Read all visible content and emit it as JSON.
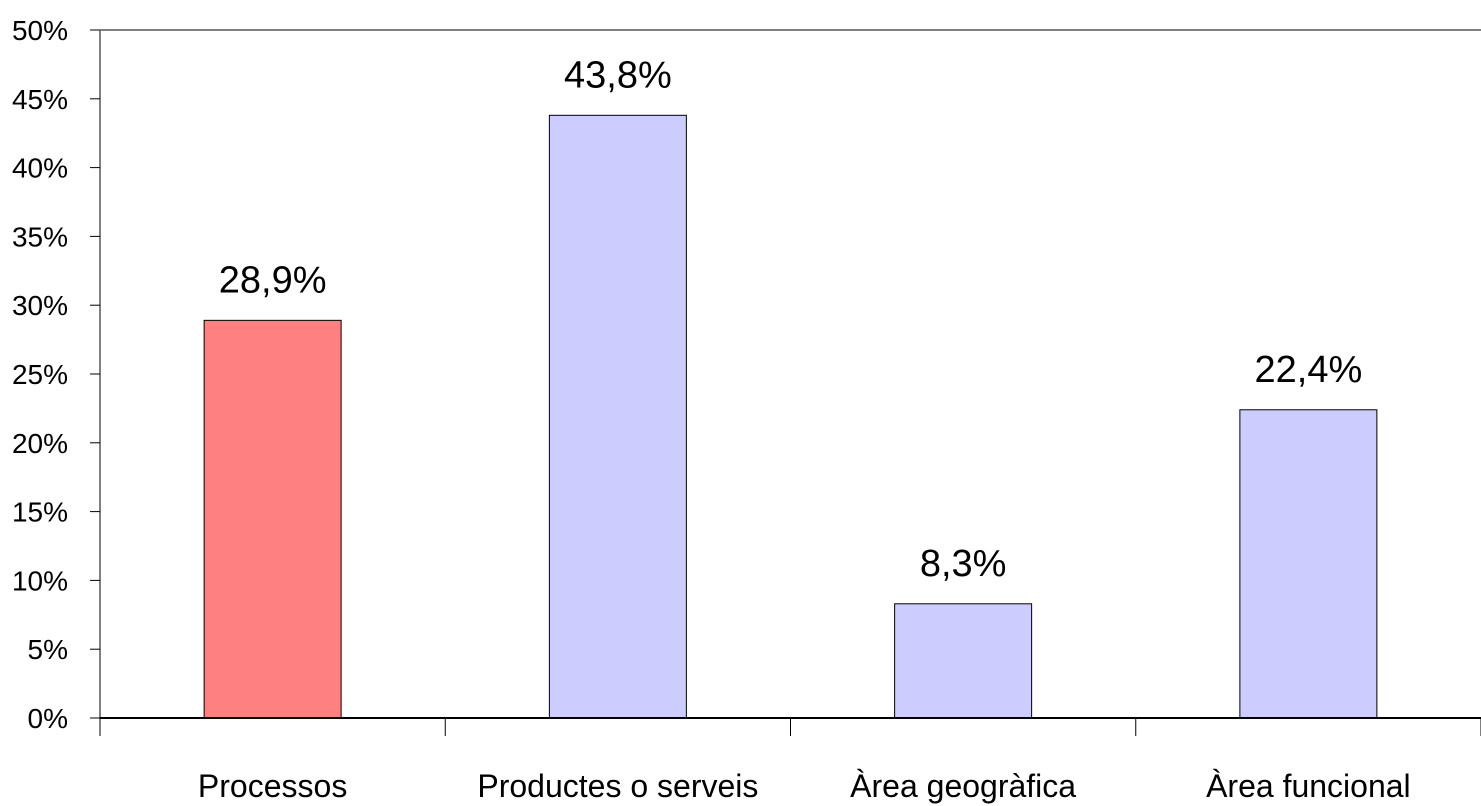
{
  "chart_data": {
    "type": "bar",
    "categories": [
      "Processos",
      "Productes o serveis",
      "Àrea geogràfica",
      "Àrea funcional"
    ],
    "values": [
      28.9,
      43.8,
      8.3,
      22.4
    ],
    "data_labels": [
      "28,9%",
      "43,8%",
      "8,3%",
      "22,4%"
    ],
    "bar_colors": [
      "#ff8080",
      "#ccccff",
      "#ccccff",
      "#ccccff"
    ],
    "ylim": [
      0,
      50
    ],
    "yticks": [
      0,
      5,
      10,
      15,
      20,
      25,
      30,
      35,
      40,
      45,
      50
    ],
    "ytick_labels": [
      "0%",
      "5%",
      "10%",
      "15%",
      "20%",
      "25%",
      "30%",
      "35%",
      "40%",
      "45%",
      "50%"
    ],
    "grid": false,
    "legend": "none",
    "title": "",
    "xlabel": "",
    "ylabel": ""
  }
}
